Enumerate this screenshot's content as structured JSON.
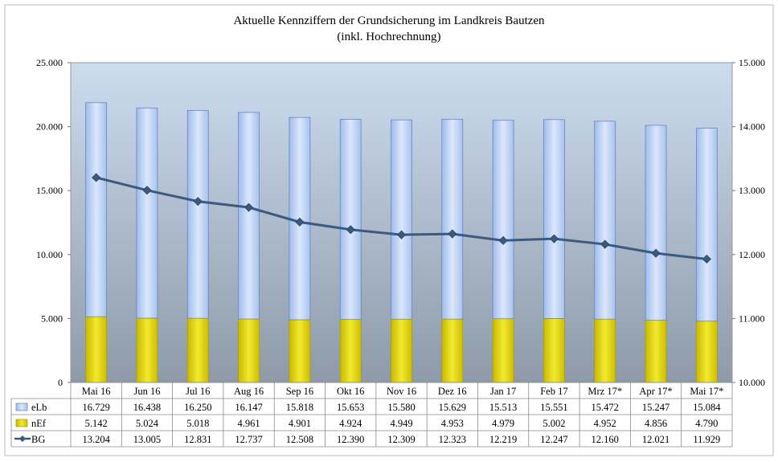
{
  "chart_data": {
    "type": "bar",
    "title": "Aktuelle Kennziffern der Grundsicherung im Landkreis Bautzen",
    "subtitle": "(inkl. Hochrechnung)",
    "categories": [
      "Mai 16",
      "Jun 16",
      "Jul 16",
      "Aug 16",
      "Sep 16",
      "Okt 16",
      "Nov 16",
      "Dez 16",
      "Jan 17",
      "Feb 17",
      "Mrz 17*",
      "Apr 17*",
      "Mai 17*"
    ],
    "stacked": true,
    "series": [
      {
        "name": "eLb",
        "axis": "left",
        "kind": "bar",
        "color": "#c6d8f5",
        "values": [
          16729,
          16438,
          16250,
          16147,
          15818,
          15653,
          15580,
          15629,
          15513,
          15551,
          15472,
          15247,
          15084
        ],
        "labels": [
          "16.729",
          "16.438",
          "16.250",
          "16.147",
          "15.818",
          "15.653",
          "15.580",
          "15.629",
          "15.513",
          "15.551",
          "15.472",
          "15.247",
          "15.084"
        ]
      },
      {
        "name": "nEf",
        "axis": "left",
        "kind": "bar",
        "color": "#e6dc00",
        "values": [
          5142,
          5024,
          5018,
          4961,
          4901,
          4924,
          4949,
          4953,
          4979,
          5002,
          4952,
          4856,
          4790
        ],
        "labels": [
          "5.142",
          "5.024",
          "5.018",
          "4.961",
          "4.901",
          "4.924",
          "4.949",
          "4.953",
          "4.979",
          "5.002",
          "4.952",
          "4.856",
          "4.790"
        ]
      },
      {
        "name": "BG",
        "axis": "right",
        "kind": "line",
        "color": "#3a5a80",
        "values": [
          13204,
          13005,
          12831,
          12737,
          12508,
          12390,
          12309,
          12323,
          12219,
          12247,
          12160,
          12021,
          11929
        ],
        "labels": [
          "13.204",
          "13.005",
          "12.831",
          "12.737",
          "12.508",
          "12.390",
          "12.309",
          "12.323",
          "12.219",
          "12.247",
          "12.160",
          "12.021",
          "11.929"
        ]
      }
    ],
    "left_axis": {
      "ylim": [
        0,
        25000
      ],
      "ticks": [
        0,
        5000,
        10000,
        15000,
        20000,
        25000
      ],
      "tick_labels": [
        "0",
        "5.000",
        "10.000",
        "15.000",
        "20.000",
        "25.000"
      ]
    },
    "right_axis": {
      "ylim": [
        10000,
        15000
      ],
      "ticks": [
        10000,
        11000,
        12000,
        13000,
        14000,
        15000
      ],
      "tick_labels": [
        "10.000",
        "11.000",
        "12.000",
        "13.000",
        "14.000",
        "15.000"
      ]
    },
    "grid": false,
    "legend": "data-table",
    "plot_background": [
      "#ccdcef",
      "#8e9aa8"
    ]
  }
}
